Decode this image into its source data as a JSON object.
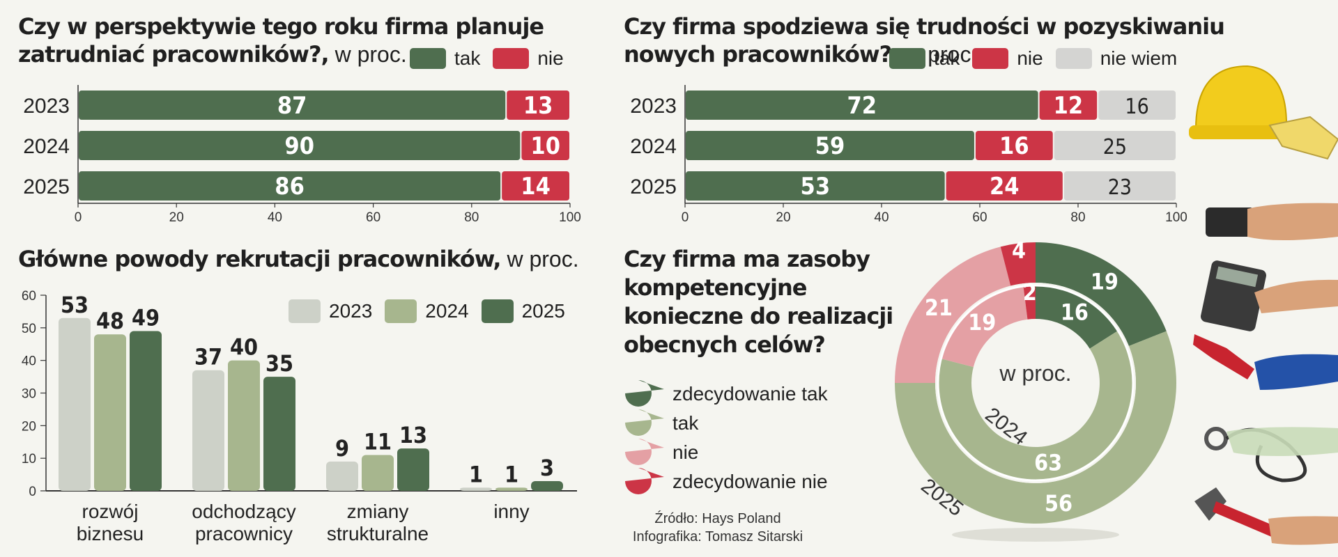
{
  "colors": {
    "tak": "#4f6e4f",
    "nie": "#cc3546",
    "nie_wiem": "#d4d4d2",
    "y2023": "#cdd1c8",
    "y2024": "#a7b68e",
    "y2025": "#4f6e4f",
    "pie_zdec_tak": "#4f6e4f",
    "pie_tak": "#a7b68e",
    "pie_nie": "#e4a0a4",
    "pie_zdec_nie": "#cc3546"
  },
  "panel1": {
    "title": "Czy w perspektywie tego roku firma planuje zatrudniać pracowników?,",
    "unit": " w proc.",
    "legend": [
      {
        "label": "tak",
        "color": "#4f6e4f"
      },
      {
        "label": "nie",
        "color": "#cc3546"
      }
    ]
  },
  "panel2": {
    "title": "Czy firma spodziewa się trudności w pozyskiwaniu nowych pracowników?,",
    "unit": " w proc.",
    "legend": [
      {
        "label": "tak",
        "color": "#4f6e4f"
      },
      {
        "label": "nie",
        "color": "#cc3546"
      },
      {
        "label": "nie wiem",
        "color": "#d4d4d2"
      }
    ]
  },
  "panel3": {
    "title": "Główne powody rekrutacji pracowników,",
    "unit": " w proc.",
    "legend": [
      {
        "label": "2023",
        "color": "#cdd1c8"
      },
      {
        "label": "2024",
        "color": "#a7b68e"
      },
      {
        "label": "2025",
        "color": "#4f6e4f"
      }
    ]
  },
  "panel4": {
    "title_lines": [
      "Czy firma ma zasoby",
      "kompetencyjne",
      "konieczne do realizacji",
      "obecnych celów?"
    ],
    "center_label": "w proc.",
    "legend": [
      {
        "label": "zdecydowanie tak",
        "color": "#4f6e4f"
      },
      {
        "label": "tak",
        "color": "#a7b68e"
      },
      {
        "label": "nie",
        "color": "#e4a0a4"
      },
      {
        "label": "zdecydowanie nie",
        "color": "#cc3546"
      }
    ]
  },
  "source": {
    "line1": "Źródło: Hays Poland",
    "line2": "Infografika: Tomasz Sitarski"
  },
  "chart_data": [
    {
      "type": "bar",
      "orientation": "horizontal",
      "stacked": true,
      "title": "Czy w perspektywie tego roku firma planuje zatrudniać pracowników?, w proc.",
      "categories": [
        "2023",
        "2024",
        "2025"
      ],
      "series": [
        {
          "name": "tak",
          "values": [
            87,
            90,
            86
          ]
        },
        {
          "name": "nie",
          "values": [
            13,
            10,
            14
          ]
        }
      ],
      "xlim": [
        0,
        100
      ],
      "xticks": [
        0,
        20,
        40,
        60,
        80,
        100
      ]
    },
    {
      "type": "bar",
      "orientation": "horizontal",
      "stacked": true,
      "title": "Czy firma spodziewa się trudności w pozyskiwaniu nowych pracowników?, w proc.",
      "categories": [
        "2023",
        "2024",
        "2025"
      ],
      "series": [
        {
          "name": "tak",
          "values": [
            72,
            59,
            53
          ]
        },
        {
          "name": "nie",
          "values": [
            12,
            16,
            24
          ]
        },
        {
          "name": "nie wiem",
          "values": [
            16,
            25,
            23
          ]
        }
      ],
      "xlim": [
        0,
        100
      ],
      "xticks": [
        0,
        20,
        40,
        60,
        80,
        100
      ]
    },
    {
      "type": "bar",
      "orientation": "vertical",
      "title": "Główne powody rekrutacji pracowników, w proc.",
      "categories": [
        [
          "rozwój",
          "biznesu"
        ],
        [
          "odchodzący",
          "pracownicy"
        ],
        [
          "zmiany",
          "strukturalne"
        ],
        [
          "inny"
        ]
      ],
      "series": [
        {
          "name": "2023",
          "values": [
            53,
            37,
            9,
            1
          ]
        },
        {
          "name": "2024",
          "values": [
            48,
            40,
            11,
            1
          ]
        },
        {
          "name": "2025",
          "values": [
            49,
            35,
            13,
            3
          ]
        }
      ],
      "ylim": [
        0,
        60
      ],
      "yticks": [
        0,
        10,
        20,
        30,
        40,
        50,
        60
      ]
    },
    {
      "type": "pie",
      "variant": "donut",
      "title": "Czy firma ma zasoby kompetencyjne konieczne do realizacji obecnych celów?",
      "categories": [
        "zdecydowanie tak",
        "tak",
        "nie",
        "zdecydowanie nie"
      ],
      "series": [
        {
          "name": "2025",
          "ring": "outer",
          "values": [
            19,
            56,
            21,
            4
          ]
        },
        {
          "name": "2024",
          "ring": "inner",
          "values": [
            16,
            63,
            19,
            2
          ]
        }
      ]
    }
  ]
}
